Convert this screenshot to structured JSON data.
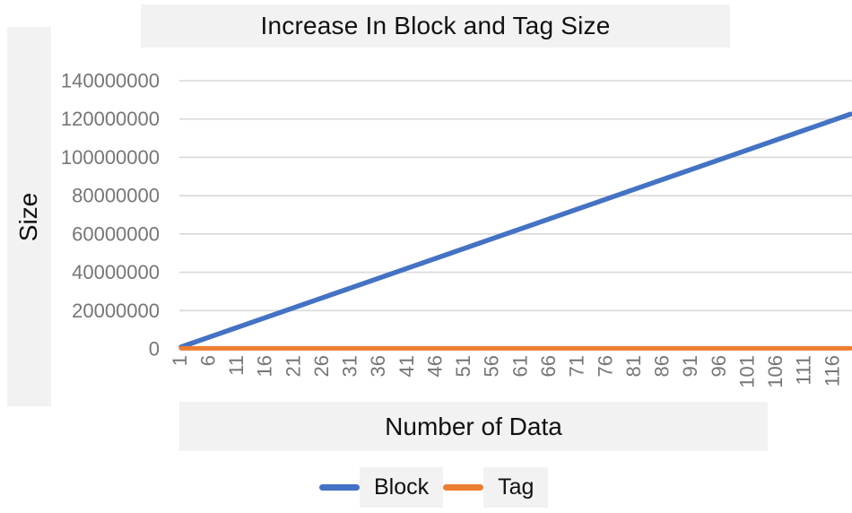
{
  "chart": {
    "title": "Increase In Block and Tag Size",
    "x_axis_title": "Number of Data",
    "y_axis_title": "Size"
  },
  "legend": {
    "items": [
      {
        "label": "Block",
        "color": "#4472C4"
      },
      {
        "label": "Tag",
        "color": "#ED7D31"
      }
    ]
  },
  "colors": {
    "block_line": "#4472C4",
    "tag_line": "#ED7D31",
    "gridline": "#D9D9D9",
    "band_background": "#F2F2F2",
    "tick_label": "#767676",
    "title_text": "#111111"
  },
  "chart_data": {
    "type": "line",
    "title": "Increase In Block and Tag Size",
    "xlabel": "Number of Data",
    "ylabel": "Size",
    "grid": "horizontal",
    "legend_position": "bottom",
    "xlim": [
      1,
      119
    ],
    "ylim": [
      0,
      140000000
    ],
    "x_tick_labels": [
      1,
      6,
      11,
      16,
      21,
      26,
      31,
      36,
      41,
      46,
      51,
      56,
      61,
      66,
      71,
      76,
      81,
      86,
      91,
      96,
      101,
      106,
      111,
      116
    ],
    "y_tick_labels": [
      0,
      20000000,
      40000000,
      60000000,
      80000000,
      100000000,
      120000000,
      140000000
    ],
    "x": [
      1,
      6,
      11,
      16,
      21,
      26,
      31,
      36,
      41,
      46,
      51,
      56,
      61,
      66,
      71,
      76,
      81,
      86,
      91,
      96,
      101,
      106,
      111,
      116,
      119
    ],
    "series": [
      {
        "name": "Block",
        "color": "#4472C4",
        "values": [
          1030000,
          6180000,
          11330000,
          16480000,
          21630000,
          26780000,
          31930000,
          37080000,
          42230000,
          47380000,
          52530000,
          57680000,
          62830000,
          67980000,
          73130000,
          78280000,
          83430000,
          88580000,
          93730000,
          98880000,
          104030000,
          109180000,
          114330000,
          119480000,
          122570000
        ]
      },
      {
        "name": "Tag",
        "color": "#ED7D31",
        "values": [
          300000,
          300000,
          300000,
          300000,
          300000,
          300000,
          300000,
          300000,
          300000,
          300000,
          300000,
          300000,
          300000,
          300000,
          300000,
          300000,
          300000,
          300000,
          300000,
          300000,
          300000,
          300000,
          300000,
          300000,
          300000
        ]
      }
    ]
  }
}
